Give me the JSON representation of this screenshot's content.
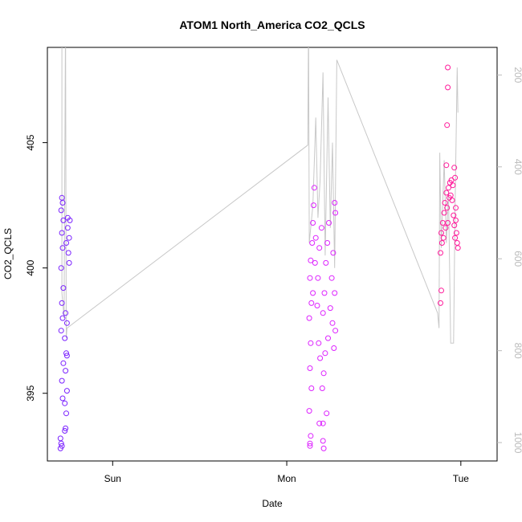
{
  "chart_data": {
    "type": "scatter",
    "title": "ATOM1 North_America CO2_QCLS",
    "xlabel": "Date",
    "ylabel": "CO2_QCLS",
    "x_ticks": [
      "Sun",
      "Mon",
      "Tue"
    ],
    "y_ticks": [
      "395",
      "400",
      "405"
    ],
    "y2_ticks": [
      "200",
      "400",
      "600",
      "800",
      "1000"
    ],
    "ylim": [
      392.3,
      408.8
    ],
    "y2lim": [
      1040,
      140
    ],
    "xlim_hours": [
      -14,
      48
    ],
    "grid": false,
    "secondary_axis_color": "#bbbbbb",
    "line_color": "#c8c8c8",
    "series": [
      {
        "color": "#7b22ff",
        "points": [
          [
            -12.2,
            392.8
          ],
          [
            -12.1,
            393.0
          ],
          [
            -12.0,
            392.9
          ],
          [
            -12.2,
            393.2
          ],
          [
            -11.9,
            394.8
          ],
          [
            -12.0,
            395.5
          ],
          [
            -11.8,
            396.2
          ],
          [
            -12.1,
            397.5
          ],
          [
            -11.9,
            398.0
          ],
          [
            -12.0,
            398.6
          ],
          [
            -11.8,
            399.2
          ],
          [
            -12.1,
            400.0
          ],
          [
            -11.9,
            400.8
          ],
          [
            -12.0,
            401.4
          ],
          [
            -11.8,
            401.9
          ],
          [
            -12.1,
            402.3
          ],
          [
            -11.9,
            402.6
          ],
          [
            -12.0,
            402.8
          ],
          [
            -11.5,
            393.6
          ],
          [
            -11.4,
            394.2
          ],
          [
            -11.6,
            394.6
          ],
          [
            -11.3,
            395.1
          ],
          [
            -11.5,
            395.9
          ],
          [
            -11.4,
            396.6
          ],
          [
            -11.6,
            397.2
          ],
          [
            -11.3,
            397.8
          ],
          [
            -11.5,
            398.2
          ],
          [
            -11.4,
            401.0
          ],
          [
            -11.2,
            401.6
          ],
          [
            -11.0,
            401.2
          ],
          [
            -11.1,
            400.6
          ],
          [
            -10.9,
            401.9
          ],
          [
            -11.0,
            400.2
          ],
          [
            -11.2,
            402.0
          ],
          [
            -11.3,
            396.5
          ],
          [
            -11.6,
            393.5
          ]
        ]
      },
      {
        "color": "#dd22ff",
        "points": [
          [
            22.2,
            393.0
          ],
          [
            22.3,
            393.3
          ],
          [
            22.1,
            394.3
          ],
          [
            22.4,
            395.2
          ],
          [
            22.2,
            396.0
          ],
          [
            22.3,
            397.0
          ],
          [
            22.1,
            398.0
          ],
          [
            22.4,
            398.6
          ],
          [
            22.2,
            399.6
          ],
          [
            22.3,
            400.3
          ],
          [
            22.5,
            401.0
          ],
          [
            22.6,
            401.8
          ],
          [
            22.7,
            402.5
          ],
          [
            22.8,
            403.2
          ],
          [
            22.6,
            399.0
          ],
          [
            22.9,
            400.2
          ],
          [
            23.2,
            398.5
          ],
          [
            23.4,
            397.0
          ],
          [
            23.6,
            396.4
          ],
          [
            23.3,
            399.6
          ],
          [
            23.5,
            400.8
          ],
          [
            23.8,
            401.6
          ],
          [
            23.9,
            395.2
          ],
          [
            24.1,
            395.8
          ],
          [
            24.3,
            396.6
          ],
          [
            24.0,
            398.2
          ],
          [
            24.2,
            399.0
          ],
          [
            24.4,
            400.2
          ],
          [
            24.6,
            401.0
          ],
          [
            24.8,
            401.8
          ],
          [
            24.5,
            394.2
          ],
          [
            24.7,
            397.2
          ],
          [
            25.0,
            398.4
          ],
          [
            25.2,
            399.6
          ],
          [
            25.4,
            400.6
          ],
          [
            25.3,
            397.8
          ],
          [
            25.5,
            396.8
          ],
          [
            25.6,
            402.6
          ],
          [
            25.7,
            402.2
          ],
          [
            25.6,
            399.0
          ],
          [
            25.7,
            397.5
          ],
          [
            23.5,
            393.8
          ],
          [
            24.0,
            393.8
          ],
          [
            24.1,
            392.8
          ],
          [
            24.0,
            393.1
          ],
          [
            22.2,
            392.9
          ],
          [
            23.0,
            401.2
          ]
        ]
      },
      {
        "color": "#ff1a9a",
        "points": [
          [
            40.2,
            398.6
          ],
          [
            40.3,
            399.1
          ],
          [
            40.2,
            400.6
          ],
          [
            40.4,
            401.0
          ],
          [
            40.3,
            401.4
          ],
          [
            40.5,
            401.8
          ],
          [
            40.6,
            401.2
          ],
          [
            40.7,
            402.2
          ],
          [
            40.8,
            402.6
          ],
          [
            40.9,
            401.6
          ],
          [
            41.0,
            403.0
          ],
          [
            41.1,
            402.4
          ],
          [
            41.2,
            401.8
          ],
          [
            41.3,
            403.2
          ],
          [
            41.4,
            402.8
          ],
          [
            41.5,
            403.4
          ],
          [
            41.6,
            402.9
          ],
          [
            41.7,
            403.5
          ],
          [
            41.8,
            402.7
          ],
          [
            41.9,
            403.3
          ],
          [
            42.0,
            402.1
          ],
          [
            42.1,
            401.7
          ],
          [
            42.2,
            401.2
          ],
          [
            42.3,
            402.4
          ],
          [
            42.4,
            401.4
          ],
          [
            42.5,
            401.0
          ],
          [
            42.6,
            400.8
          ],
          [
            42.3,
            401.9
          ],
          [
            42.1,
            404.0
          ],
          [
            42.2,
            403.6
          ],
          [
            41.0,
            404.1
          ],
          [
            41.1,
            405.7
          ],
          [
            41.2,
            407.2
          ],
          [
            41.2,
            408.0
          ]
        ]
      }
    ],
    "line_segments_hours": [
      [
        -12.0,
        410.0
      ],
      [
        -12.0,
        399.0
      ],
      [
        -11.7,
        398.0
      ],
      [
        -11.5,
        410.0
      ],
      [
        -11.4,
        397.2
      ],
      [
        -11.3,
        397.6
      ],
      [
        21.9,
        404.9
      ],
      [
        22.0,
        410.0
      ],
      [
        22.1,
        401.0
      ],
      [
        22.6,
        402.5
      ],
      [
        23.0,
        406.0
      ],
      [
        23.3,
        402.0
      ],
      [
        23.6,
        403.5
      ],
      [
        24.0,
        407.8
      ],
      [
        24.3,
        400.5
      ],
      [
        24.7,
        406.8
      ],
      [
        25.0,
        401.6
      ],
      [
        25.3,
        405.0
      ],
      [
        25.6,
        400.0
      ],
      [
        25.9,
        408.3
      ],
      [
        39.8,
        398.2
      ],
      [
        40.0,
        397.6
      ],
      [
        40.1,
        404.6
      ],
      [
        40.3,
        400.8
      ],
      [
        40.7,
        404.3
      ],
      [
        41.0,
        401.0
      ],
      [
        41.3,
        403.0
      ],
      [
        41.6,
        397.0
      ],
      [
        42.0,
        397.0
      ],
      [
        42.2,
        402.3
      ],
      [
        42.5,
        408.0
      ],
      [
        42.6,
        406.2
      ]
    ]
  }
}
